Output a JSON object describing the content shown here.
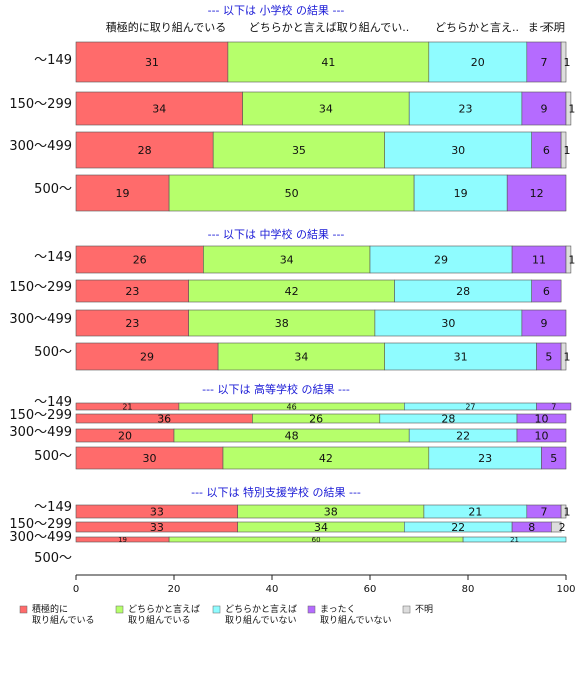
{
  "chart_data": {
    "type": "bar",
    "orientation": "horizontal",
    "stacked": true,
    "xlim": [
      0,
      100
    ],
    "x_ticks": [
      "0",
      "20",
      "40",
      "60",
      "80",
      "100"
    ],
    "column_headers": [
      "積極的に取り組んでいる",
      "どちらかと言えば取り組んでい..",
      "どちらかと言え..",
      "まっ..",
      "不明"
    ],
    "legend": [
      {
        "line1": "積極的に",
        "line2": "取り組んでいる",
        "color": "#ff6b6b"
      },
      {
        "line1": "どちらかと言えば",
        "line2": "取り組んでいる",
        "color": "#b6ff6b"
      },
      {
        "line1": "どちらかと言えば",
        "line2": "取り組んでいない",
        "color": "#8ffcff"
      },
      {
        "line1": "まったく",
        "line2": "取り組んでいない",
        "color": "#b56bff"
      },
      {
        "line1": "不明",
        "line2": "",
        "color": "#dddddd"
      }
    ],
    "panels": [
      {
        "title": "--- 以下は 小学校 の結果 ---",
        "categories": [
          "～149",
          "150～299",
          "300～499",
          "500～"
        ],
        "rows": [
          [
            31,
            41,
            20,
            7,
            1
          ],
          [
            34,
            34,
            23,
            9,
            1
          ],
          [
            28,
            35,
            30,
            6,
            1
          ],
          [
            19,
            50,
            19,
            12,
            0
          ]
        ]
      },
      {
        "title": "--- 以下は 中学校 の結果 ---",
        "categories": [
          "～149",
          "150～299",
          "300～499",
          "500～"
        ],
        "rows": [
          [
            26,
            34,
            29,
            11,
            1
          ],
          [
            23,
            42,
            28,
            6,
            0
          ],
          [
            23,
            38,
            30,
            9,
            0
          ],
          [
            29,
            34,
            31,
            5,
            1
          ]
        ]
      },
      {
        "title": "--- 以下は 高等学校 の結果 ---",
        "categories": [
          "～149",
          "150～299",
          "300～499",
          "500～"
        ],
        "rows": [
          [
            21,
            46,
            27,
            7,
            0
          ],
          [
            36,
            26,
            28,
            10,
            0
          ],
          [
            20,
            48,
            22,
            10,
            0
          ],
          [
            30,
            42,
            23,
            5,
            0
          ]
        ]
      },
      {
        "title": "--- 以下は 特別支援学校 の結果 ---",
        "categories": [
          "～149",
          "150～299",
          "300～499",
          "500～"
        ],
        "rows": [
          [
            33,
            38,
            21,
            7,
            1
          ],
          [
            33,
            34,
            22,
            8,
            2
          ],
          [
            19,
            60,
            21,
            0,
            0
          ],
          null
        ]
      }
    ]
  }
}
